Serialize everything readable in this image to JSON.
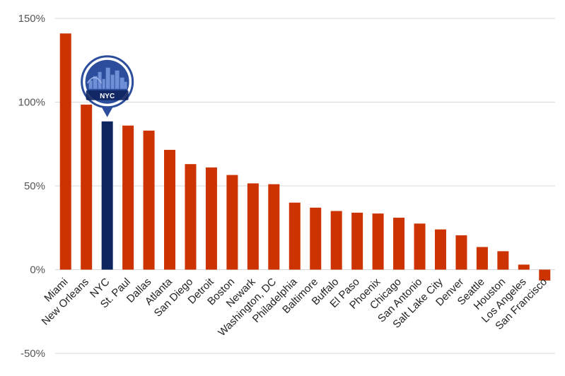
{
  "chart_data": {
    "type": "bar",
    "title": "",
    "xlabel": "",
    "ylabel": "",
    "ylim": [
      -50,
      150
    ],
    "yticks": [
      -50,
      0,
      50,
      100,
      150
    ],
    "ytick_labels": [
      "-50%",
      "0%",
      "50%",
      "100%",
      "150%"
    ],
    "grid": true,
    "categories": [
      "Miami",
      "New Orleans",
      "NYC",
      "St. Paul",
      "Dallas",
      "Atlanta",
      "San Diego",
      "Detroit",
      "Boston",
      "Newark",
      "Washington, DC",
      "Philadelphia",
      "Baltimore",
      "Buffalo",
      "El Paso",
      "Phoenix",
      "Chicago",
      "San Antonio",
      "Salt Lake City",
      "Denver",
      "Seattle",
      "Houston",
      "Los Angeles",
      "San Francisco"
    ],
    "values": [
      141,
      98.5,
      88.5,
      86,
      83,
      71.5,
      63,
      61,
      56.5,
      51.5,
      51,
      40,
      37,
      35,
      34,
      33.5,
      31,
      27.5,
      24,
      20.5,
      13.5,
      11,
      3,
      -6.5
    ],
    "highlight": "NYC",
    "highlight_badge": "NYC",
    "colors": {
      "bar": "#cc3300",
      "highlight": "#0f2560",
      "grid": "#d9d9d9",
      "badge": "#2b4d9b"
    }
  }
}
